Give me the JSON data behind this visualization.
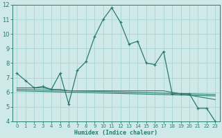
{
  "xlabel": "Humidex (Indice chaleur)",
  "bg_color": "#cee9e8",
  "grid_color": "#aad4d2",
  "line_color": "#2a7a6e",
  "xlim": [
    -0.5,
    23.5
  ],
  "ylim": [
    4,
    12
  ],
  "yticks": [
    4,
    5,
    6,
    7,
    8,
    9,
    10,
    11,
    12
  ],
  "xticks": [
    0,
    1,
    2,
    3,
    4,
    5,
    6,
    7,
    8,
    9,
    10,
    11,
    12,
    13,
    14,
    15,
    16,
    17,
    18,
    19,
    20,
    21,
    22,
    23
  ],
  "line1_x": [
    0,
    1,
    2,
    3,
    4,
    5,
    6,
    7,
    8,
    9,
    10,
    11,
    12,
    13,
    14,
    15,
    16,
    17,
    18,
    19,
    20,
    21,
    22,
    23
  ],
  "line1_y": [
    7.3,
    6.8,
    6.3,
    6.4,
    6.2,
    7.3,
    5.2,
    7.5,
    8.1,
    9.8,
    11.0,
    11.8,
    10.8,
    9.3,
    9.5,
    8.0,
    7.9,
    8.8,
    5.9,
    5.9,
    5.9,
    4.9,
    4.9,
    4.0
  ],
  "line2_x": [
    0,
    1,
    2,
    3,
    4,
    5,
    6,
    7,
    8,
    9,
    10,
    11,
    12,
    13,
    14,
    15,
    16,
    17,
    18,
    19,
    20,
    21,
    22,
    23
  ],
  "line2_y": [
    6.3,
    6.3,
    6.3,
    6.3,
    6.2,
    6.2,
    6.1,
    6.1,
    6.1,
    6.1,
    6.1,
    6.1,
    6.1,
    6.1,
    6.1,
    6.1,
    6.1,
    6.1,
    6.0,
    5.9,
    5.8,
    5.7,
    5.6,
    5.5
  ],
  "line3_x": [
    0,
    23
  ],
  "line3_y": [
    6.2,
    5.85
  ],
  "line4_x": [
    0,
    23
  ],
  "line4_y": [
    6.1,
    5.75
  ]
}
